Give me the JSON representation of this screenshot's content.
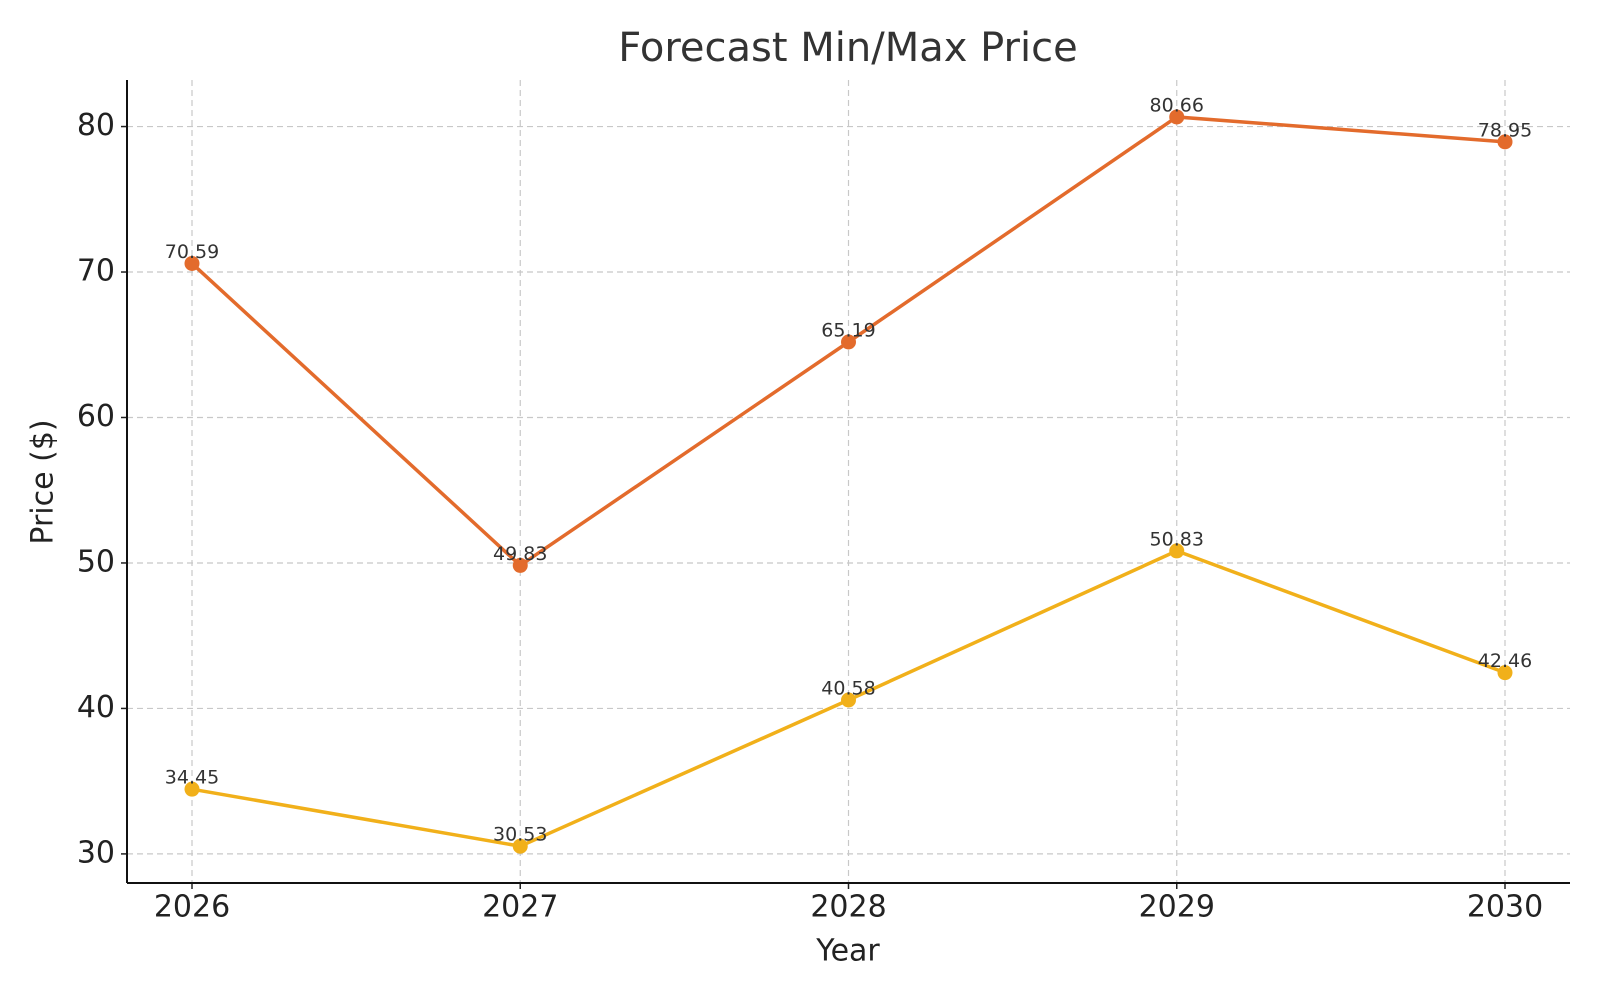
{
  "chart_data": {
    "type": "line",
    "title": "Forecast Min/Max Price",
    "x_label": "Year",
    "y_label": "Price ($)",
    "categories": [
      "2026",
      "2027",
      "2028",
      "2029",
      "2030"
    ],
    "series": [
      {
        "color": "#e36b2c",
        "values": [
          70.59,
          49.83,
          65.19,
          80.66,
          78.95
        ]
      },
      {
        "color": "#f1b01a",
        "values": [
          34.45,
          30.53,
          40.58,
          50.83,
          42.46
        ]
      }
    ],
    "ylim": [
      28.0,
      83.2
    ],
    "yticks": [
      30,
      40,
      50,
      60,
      70,
      80
    ],
    "grid": true
  }
}
